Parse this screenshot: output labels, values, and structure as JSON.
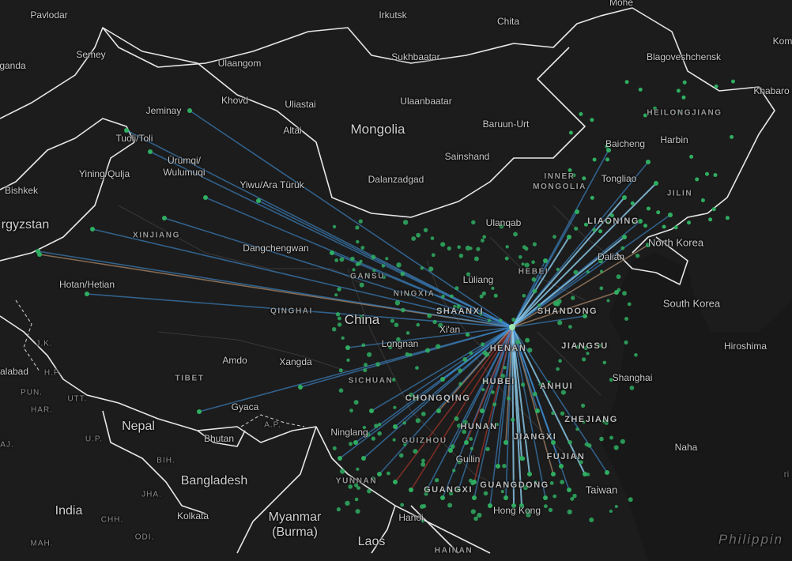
{
  "map": {
    "countries": [
      {
        "id": "mongolia",
        "text": "Mongolia"
      },
      {
        "id": "china",
        "text": "China"
      },
      {
        "id": "north-korea",
        "text": "North Korea"
      },
      {
        "id": "south-korea",
        "text": "South Korea"
      },
      {
        "id": "nepal",
        "text": "Nepal"
      },
      {
        "id": "bhutan",
        "text": "Bhutan"
      },
      {
        "id": "bangladesh",
        "text": "Bangladesh"
      },
      {
        "id": "india",
        "text": "India"
      },
      {
        "id": "myanmar",
        "text": "Myanmar\n(Burma)"
      },
      {
        "id": "laos",
        "text": "Laos"
      },
      {
        "id": "taiwan",
        "text": "Taiwan"
      },
      {
        "id": "kyrgyzstan",
        "text": "rgyzstan"
      },
      {
        "id": "philippines",
        "text": "Philippin"
      }
    ],
    "regions": [
      {
        "id": "xinjiang",
        "text": "XINJIANG"
      },
      {
        "id": "gansu",
        "text": "GANSU"
      },
      {
        "id": "ningxia",
        "text": "NINGXIA"
      },
      {
        "id": "qinghai",
        "text": "QINGHAI"
      },
      {
        "id": "tibet",
        "text": "TIBET"
      },
      {
        "id": "sichuan",
        "text": "SICHUAN"
      },
      {
        "id": "chongqing",
        "text": "CHONGQING"
      },
      {
        "id": "guizhou",
        "text": "GUIZHOU"
      },
      {
        "id": "yunnan",
        "text": "YUNNAN"
      },
      {
        "id": "guangxi",
        "text": "GUANGXI"
      },
      {
        "id": "hainan",
        "text": "HAINAN"
      },
      {
        "id": "shaanxi",
        "text": "SHAANXI"
      },
      {
        "id": "henan",
        "text": "HENAN"
      },
      {
        "id": "hubei",
        "text": "HUBEI"
      },
      {
        "id": "hunan",
        "text": "HUNAN"
      },
      {
        "id": "jiangxi",
        "text": "JIANGXI"
      },
      {
        "id": "guangdong",
        "text": "GUANGDONG"
      },
      {
        "id": "fujian",
        "text": "FUJIAN"
      },
      {
        "id": "zhejiang",
        "text": "ZHEJIANG"
      },
      {
        "id": "anhui",
        "text": "ANHUI"
      },
      {
        "id": "jiangsu",
        "text": "JIANGSU"
      },
      {
        "id": "shandong",
        "text": "SHANDONG"
      },
      {
        "id": "hebei",
        "text": "HEBEI"
      },
      {
        "id": "inner-mongolia",
        "text": "INNER\nMONGOLIA"
      },
      {
        "id": "liaoning",
        "text": "LIAONING"
      },
      {
        "id": "jilin",
        "text": "JILIN"
      },
      {
        "id": "heilongjiang",
        "text": "HEILONGJIANG"
      },
      {
        "id": "jk",
        "text": "J.K."
      },
      {
        "id": "hp",
        "text": "H.P."
      },
      {
        "id": "pun",
        "text": "PUN."
      },
      {
        "id": "har",
        "text": "HAR."
      },
      {
        "id": "utt",
        "text": "UTT."
      },
      {
        "id": "up",
        "text": "U.P."
      },
      {
        "id": "bih",
        "text": "BIH."
      },
      {
        "id": "jha",
        "text": "JHA."
      },
      {
        "id": "chh",
        "text": "CHH."
      },
      {
        "id": "odi",
        "text": "ODI."
      },
      {
        "id": "mah",
        "text": "MAH."
      },
      {
        "id": "ap",
        "text": "A.P."
      },
      {
        "id": "aj",
        "text": "AJ."
      }
    ],
    "cities": [
      {
        "id": "pavlodar",
        "text": "Pavlodar"
      },
      {
        "id": "semey",
        "text": "Semey"
      },
      {
        "id": "ganda",
        "text": "ganda"
      },
      {
        "id": "ulaangom",
        "text": "Ulaangom"
      },
      {
        "id": "irkutsk",
        "text": "Irkutsk"
      },
      {
        "id": "chita",
        "text": "Chita"
      },
      {
        "id": "mohe",
        "text": "Mohe"
      },
      {
        "id": "kom",
        "text": "Kom"
      },
      {
        "id": "sukhbaatar",
        "text": "Sukhbaatar"
      },
      {
        "id": "blagoveshchensk",
        "text": "Blagoveshchensk"
      },
      {
        "id": "khabarov",
        "text": "Khabaro"
      },
      {
        "id": "jeminay",
        "text": "Jeminay"
      },
      {
        "id": "khovd",
        "text": "Khovd"
      },
      {
        "id": "uliastai",
        "text": "Uliastai"
      },
      {
        "id": "ulaanbaatar",
        "text": "Ulaanbaatar"
      },
      {
        "id": "tuoli",
        "text": "Tuoli/Toli"
      },
      {
        "id": "altai",
        "text": "Altai"
      },
      {
        "id": "baruun-urt",
        "text": "Baruun-Urt"
      },
      {
        "id": "heilongjiang-blank",
        "text": ""
      },
      {
        "id": "baicheng",
        "text": "Baicheng"
      },
      {
        "id": "harbin",
        "text": "Harbin"
      },
      {
        "id": "urumqi",
        "text": "Ürümqi/\nWulumuqi"
      },
      {
        "id": "yining",
        "text": "Yining/Qulja"
      },
      {
        "id": "sainshand",
        "text": "Sainshand"
      },
      {
        "id": "bishkek",
        "text": "Bishkek"
      },
      {
        "id": "yiwu",
        "text": "Yiwu/Ara Türük"
      },
      {
        "id": "dalanzadgad",
        "text": "Dalanzadgad"
      },
      {
        "id": "tongliao",
        "text": "Tongliao"
      },
      {
        "id": "ulanqab",
        "text": "Ulanqab"
      },
      {
        "id": "dangchengwan",
        "text": "Dangchengwan"
      },
      {
        "id": "dalian",
        "text": "Dalian"
      },
      {
        "id": "hotan",
        "text": "Hotan/Hetian"
      },
      {
        "id": "luliang",
        "text": "Lüliang"
      },
      {
        "id": "xian",
        "text": "Xi'an"
      },
      {
        "id": "longnan",
        "text": "Longnan"
      },
      {
        "id": "hiroshima",
        "text": "Hiroshima"
      },
      {
        "id": "amdo",
        "text": "Amdo"
      },
      {
        "id": "xangda",
        "text": "Xangda"
      },
      {
        "id": "shanghai",
        "text": "Shanghai"
      },
      {
        "id": "jalabad",
        "text": "alabad"
      },
      {
        "id": "gyaca",
        "text": "Gyaca"
      },
      {
        "id": "ninglang",
        "text": "Ninglang"
      },
      {
        "id": "naha",
        "text": "Naha"
      },
      {
        "id": "guilin",
        "text": "Guilin"
      },
      {
        "id": "kolkata",
        "text": "Kolkata"
      },
      {
        "id": "hanoi",
        "text": "Hanoi"
      },
      {
        "id": "hong-kong",
        "text": "Hong Kong"
      },
      {
        "id": "yi",
        "text": "ri"
      }
    ]
  },
  "colors": {
    "background": "#1c1c1c",
    "land": "#222222",
    "border": "#e6e6e6",
    "province_border": "#3a3a3a",
    "flow_blue": "#3f8fd6",
    "flow_light": "#8fd0f0",
    "flow_tan": "#c9a07a",
    "flow_red": "#c0392b",
    "dot_green": "#2fae61"
  }
}
